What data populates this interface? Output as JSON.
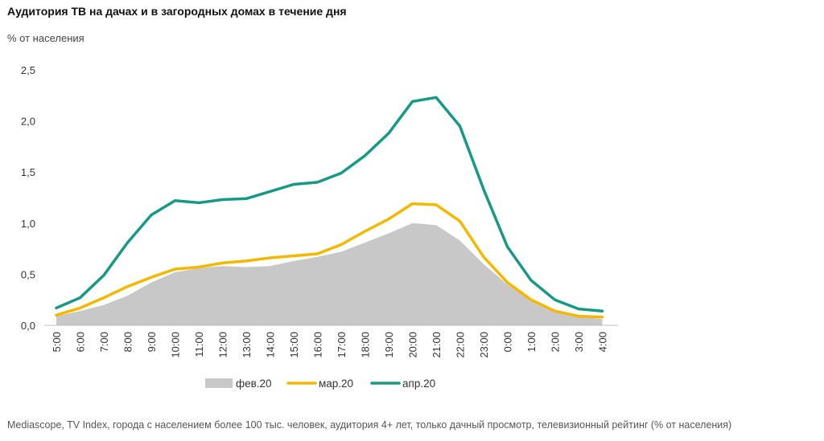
{
  "title": "Аудитория  ТВ на дачах и в загородных домах в течение дня",
  "subtitle": "% от населения",
  "footnote": "Mediascope,  TV Index,  города  с населением  более 100  тыс.  человек,  аудитория  4+ лет,  только дачный  просмотр,  телевизионный  рейтинг  (% от населения)",
  "chart_data": {
    "type": "line",
    "categories": [
      "5:00",
      "6:00",
      "7:00",
      "8:00",
      "9:00",
      "10:00",
      "11:00",
      "12:00",
      "13:00",
      "14:00",
      "15:00",
      "16:00",
      "17:00",
      "18:00",
      "19:00",
      "20:00",
      "21:00",
      "22:00",
      "23:00",
      "0:00",
      "1:00",
      "2:00",
      "3:00",
      "4:00"
    ],
    "y_ticks": [
      "0,0",
      "0,5",
      "1,0",
      "1,5",
      "2,0",
      "2,5"
    ],
    "ylim": [
      0,
      2.5
    ],
    "grid": false,
    "legend_position": "bottom",
    "series": [
      {
        "name": "фев.20",
        "style": "area",
        "color": "#c8c8c8",
        "values": [
          0.09,
          0.14,
          0.2,
          0.29,
          0.42,
          0.52,
          0.56,
          0.58,
          0.57,
          0.58,
          0.63,
          0.67,
          0.72,
          0.81,
          0.9,
          1.0,
          0.98,
          0.83,
          0.6,
          0.4,
          0.25,
          0.13,
          0.09,
          0.06
        ]
      },
      {
        "name": "мар.20",
        "style": "line",
        "color": "#f5b800",
        "values": [
          0.1,
          0.17,
          0.27,
          0.38,
          0.47,
          0.55,
          0.57,
          0.61,
          0.63,
          0.66,
          0.68,
          0.7,
          0.79,
          0.92,
          1.04,
          1.19,
          1.18,
          1.02,
          0.67,
          0.42,
          0.25,
          0.14,
          0.09,
          0.08
        ]
      },
      {
        "name": "апр.20",
        "style": "line",
        "color": "#169a86",
        "values": [
          0.17,
          0.27,
          0.49,
          0.81,
          1.08,
          1.22,
          1.2,
          1.23,
          1.24,
          1.31,
          1.38,
          1.4,
          1.49,
          1.66,
          1.88,
          2.19,
          2.23,
          1.95,
          1.33,
          0.77,
          0.44,
          0.25,
          0.16,
          0.14
        ]
      }
    ]
  }
}
